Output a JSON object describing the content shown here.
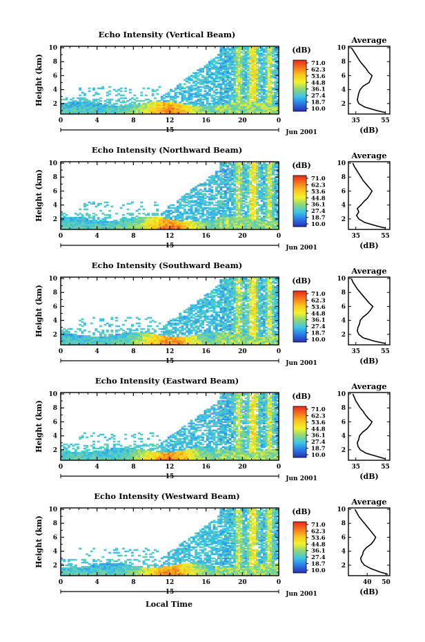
{
  "chart_data": {
    "type": "heatmap",
    "date": "Jun 2001",
    "day_label": "15",
    "xlabel": "Local Time",
    "colorbar_unit": "(dB)",
    "colorbar_ticks": [
      "71.0",
      "62.3",
      "53.6",
      "44.8",
      "36.1",
      "27.4",
      "18.7",
      "10.0"
    ],
    "colorbar_colors": [
      "#e8281e",
      "#f5731e",
      "#fbc31e",
      "#f2f32a",
      "#8cd67a",
      "#3cc6e6",
      "#2878e6",
      "#2830b4"
    ],
    "panels": [
      {
        "title": "Echo Intensity (Vertical Beam)",
        "ylabel": "Height (km)",
        "x_ticks": [
          "0",
          "4",
          "8",
          "12",
          "16",
          "20",
          "0"
        ],
        "y_ticks": [
          "2",
          "4",
          "6",
          "8",
          "10"
        ],
        "x_range": [
          0,
          24
        ],
        "y_range": [
          0.5,
          10.2
        ],
        "profile": {
          "title": "Average",
          "xlabel": "(dB)",
          "x_ticks": [
            "35",
            "55"
          ],
          "x_range": [
            30,
            58
          ],
          "y_ticks": [
            "2",
            "4",
            "6",
            "8",
            "10"
          ],
          "heights": [
            0.7,
            1.0,
            1.5,
            2.0,
            2.5,
            3.0,
            3.5,
            4.0,
            4.5,
            5.0,
            5.5,
            6.0,
            6.5,
            7.0,
            7.5,
            8.0,
            8.5,
            9.0,
            9.5,
            10.0
          ],
          "values": [
            55.0,
            49.0,
            41.0,
            37.0,
            36.0,
            36.5,
            37.0,
            38.0,
            40.0,
            44.0,
            45.0,
            46.0,
            43.5,
            42.0,
            40.0,
            38.0,
            36.5,
            35.0,
            33.5,
            32.0
          ]
        }
      },
      {
        "title": "Echo Intensity (Northward Beam)",
        "ylabel": "Height (km)",
        "x_ticks": [
          "0",
          "4",
          "8",
          "12",
          "16",
          "20",
          "0"
        ],
        "y_ticks": [
          "2",
          "4",
          "6",
          "8",
          "10"
        ],
        "x_range": [
          0,
          24
        ],
        "y_range": [
          0.5,
          10.2
        ],
        "profile": {
          "title": "Average",
          "xlabel": "(dB)",
          "x_ticks": [
            "35",
            "55"
          ],
          "x_range": [
            30,
            58
          ],
          "y_ticks": [
            "2",
            "4",
            "6",
            "8",
            "10"
          ],
          "heights": [
            0.7,
            1.0,
            1.5,
            2.0,
            2.5,
            3.0,
            3.5,
            4.0,
            4.5,
            5.0,
            5.5,
            6.0,
            6.5,
            7.0,
            7.5,
            8.0,
            8.5,
            9.0,
            9.5,
            10.0
          ],
          "values": [
            55.0,
            49.0,
            41.0,
            37.0,
            35.5,
            37.0,
            36.0,
            38.5,
            40.5,
            43.0,
            44.5,
            46.0,
            44.0,
            42.0,
            40.0,
            38.5,
            37.0,
            35.5,
            34.0,
            33.0
          ]
        }
      },
      {
        "title": "Echo Intensity (Southward Beam)",
        "ylabel": "Height (km)",
        "x_ticks": [
          "0",
          "4",
          "8",
          "12",
          "16",
          "20",
          "0"
        ],
        "y_ticks": [
          "2",
          "4",
          "6",
          "8",
          "10"
        ],
        "x_range": [
          0,
          24
        ],
        "y_range": [
          0.5,
          10.2
        ],
        "profile": {
          "title": "Average",
          "xlabel": "(dB)",
          "x_ticks": [
            "35",
            "55"
          ],
          "x_range": [
            30,
            58
          ],
          "y_ticks": [
            "2",
            "4",
            "6",
            "8",
            "10"
          ],
          "heights": [
            0.7,
            1.0,
            1.5,
            2.0,
            2.5,
            3.0,
            3.5,
            4.0,
            4.5,
            5.0,
            5.5,
            6.0,
            6.5,
            7.0,
            7.5,
            8.0,
            8.5,
            9.0,
            9.5,
            10.0
          ],
          "values": [
            55.0,
            48.0,
            40.0,
            37.0,
            36.0,
            36.5,
            37.5,
            38.0,
            40.0,
            43.0,
            45.0,
            46.5,
            44.0,
            42.0,
            40.0,
            38.0,
            36.0,
            34.5,
            33.0,
            32.0
          ]
        }
      },
      {
        "title": "Echo Intensity (Eastward Beam)",
        "ylabel": "Height (km)",
        "x_ticks": [
          "0",
          "4",
          "8",
          "12",
          "16",
          "20",
          "0"
        ],
        "y_ticks": [
          "2",
          "4",
          "6",
          "8",
          "10"
        ],
        "x_range": [
          0,
          24
        ],
        "y_range": [
          0.5,
          10.2
        ],
        "profile": {
          "title": "Average",
          "xlabel": "(dB)",
          "x_ticks": [
            "35",
            "55"
          ],
          "x_range": [
            30,
            58
          ],
          "y_ticks": [
            "2",
            "4",
            "6",
            "8",
            "10"
          ],
          "heights": [
            0.7,
            1.0,
            1.5,
            2.0,
            2.5,
            3.0,
            3.5,
            4.0,
            4.5,
            5.0,
            5.5,
            6.0,
            6.5,
            7.0,
            7.5,
            8.0,
            8.5,
            9.0,
            9.5,
            10.0
          ],
          "values": [
            55.0,
            50.0,
            42.0,
            38.0,
            36.5,
            36.0,
            37.0,
            37.5,
            39.5,
            42.5,
            44.5,
            46.0,
            43.5,
            41.5,
            40.0,
            38.0,
            36.5,
            35.0,
            34.0,
            33.0
          ]
        }
      },
      {
        "title": "Echo Intensity (Westward Beam)",
        "ylabel": "Height (km)",
        "x_ticks": [
          "0",
          "4",
          "8",
          "12",
          "16",
          "20",
          "0"
        ],
        "y_ticks": [
          "2",
          "4",
          "6",
          "8",
          "10"
        ],
        "x_range": [
          0,
          24
        ],
        "y_range": [
          0.5,
          10.2
        ],
        "profile": {
          "title": "Average",
          "xlabel": "(dB)",
          "x_ticks": [
            "40",
            "50"
          ],
          "x_range": [
            30,
            52
          ],
          "y_ticks": [
            "2",
            "4",
            "6",
            "8",
            "10"
          ],
          "heights": [
            0.7,
            1.0,
            1.5,
            2.0,
            2.5,
            3.0,
            3.5,
            4.0,
            4.5,
            5.0,
            5.5,
            6.0,
            6.5,
            7.0,
            7.5,
            8.0,
            8.5,
            9.0,
            9.5,
            10.0
          ],
          "values": [
            51.0,
            47.0,
            42.0,
            38.5,
            37.0,
            36.5,
            37.5,
            38.0,
            39.5,
            42.0,
            43.5,
            44.5,
            43.0,
            41.5,
            40.0,
            38.5,
            37.0,
            35.5,
            34.5,
            33.5
          ]
        }
      }
    ]
  }
}
